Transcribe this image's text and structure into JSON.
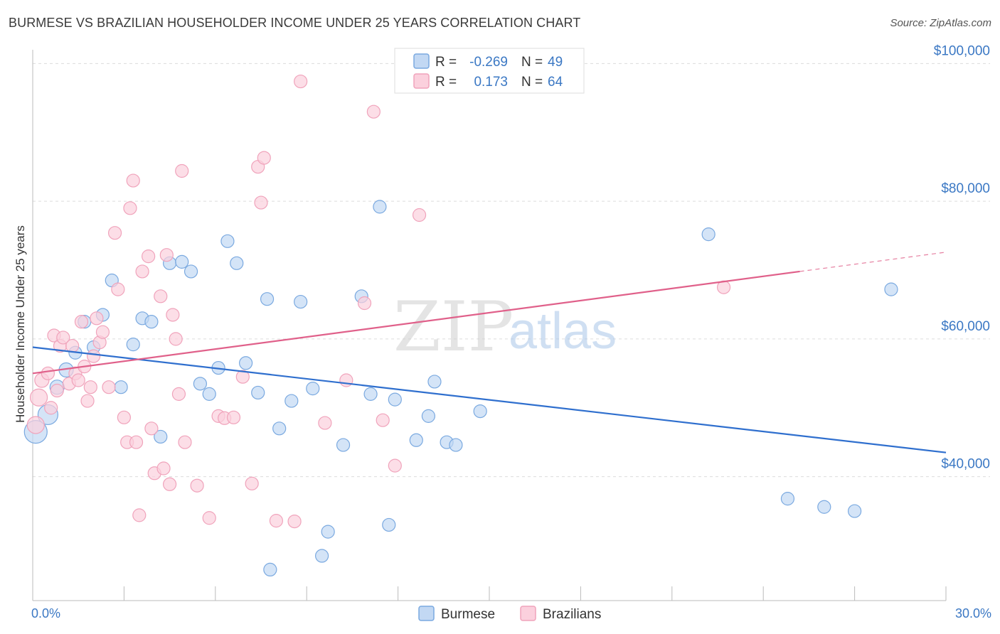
{
  "chart_data": {
    "type": "scatter",
    "title": "BURMESE VS BRAZILIAN HOUSEHOLDER INCOME UNDER 25 YEARS CORRELATION CHART",
    "source": "Source: ZipAtlas.com",
    "xlabel": "",
    "ylabel": "Householder Income Under 25 years",
    "xlim": [
      0,
      30
    ],
    "ylim": [
      22000,
      102000
    ],
    "x_tick_labels": [
      "0.0%",
      "30.0%"
    ],
    "y_ticks": [
      {
        "value": 100000,
        "label": "$100,000"
      },
      {
        "value": 80000,
        "label": "$80,000"
      },
      {
        "value": 60000,
        "label": "$60,000"
      },
      {
        "value": 40000,
        "label": "$40,000"
      }
    ],
    "watermark": {
      "zip": "ZIP",
      "atlas": "atlas"
    },
    "legend": {
      "r_label": "R =",
      "n_label": "N =",
      "rows": [
        {
          "r": "-0.269",
          "n": "49"
        },
        {
          "r": "0.173",
          "n": "64"
        }
      ]
    },
    "series": [
      {
        "name": "Burmese",
        "color": "#7aa9e0",
        "fill": "#c2d8f3",
        "line_color": "#2f6fce",
        "trend": {
          "x0": 0,
          "y0": 58800,
          "x1": 30,
          "y1": 43500
        },
        "points": [
          [
            0.1,
            46500,
            16
          ],
          [
            0.5,
            49000,
            14
          ],
          [
            0.8,
            53000,
            10
          ],
          [
            1.1,
            55500,
            10
          ],
          [
            1.4,
            58000,
            9
          ],
          [
            1.7,
            62500,
            9
          ],
          [
            2.0,
            58800,
            9
          ],
          [
            2.3,
            63500,
            9
          ],
          [
            2.6,
            68500,
            9
          ],
          [
            2.9,
            53000,
            9
          ],
          [
            3.3,
            59200,
            9
          ],
          [
            3.6,
            63000,
            9
          ],
          [
            3.9,
            62500,
            9
          ],
          [
            4.2,
            45800,
            9
          ],
          [
            4.5,
            71000,
            9
          ],
          [
            4.9,
            71200,
            9
          ],
          [
            5.2,
            69800,
            9
          ],
          [
            5.5,
            53500,
            9
          ],
          [
            5.8,
            52000,
            9
          ],
          [
            6.1,
            55800,
            9
          ],
          [
            6.4,
            74200,
            9
          ],
          [
            6.7,
            71000,
            9
          ],
          [
            7.0,
            56500,
            9
          ],
          [
            7.4,
            52200,
            9
          ],
          [
            7.7,
            65800,
            9
          ],
          [
            8.1,
            47000,
            9
          ],
          [
            8.5,
            51000,
            9
          ],
          [
            8.8,
            65400,
            9
          ],
          [
            9.2,
            52800,
            9
          ],
          [
            9.5,
            28500,
            9
          ],
          [
            9.7,
            32000,
            9
          ],
          [
            10.2,
            44600,
            9
          ],
          [
            10.8,
            66200,
            9
          ],
          [
            11.1,
            52000,
            9
          ],
          [
            11.4,
            79200,
            9
          ],
          [
            11.7,
            33000,
            9
          ],
          [
            11.9,
            51200,
            9
          ],
          [
            12.6,
            45300,
            9
          ],
          [
            13.0,
            48800,
            9
          ],
          [
            13.2,
            53800,
            9
          ],
          [
            13.6,
            45000,
            9
          ],
          [
            13.9,
            44600,
            9
          ],
          [
            14.7,
            49500,
            9
          ],
          [
            7.8,
            26500,
            9
          ],
          [
            22.2,
            75200,
            9
          ],
          [
            24.8,
            36800,
            9
          ],
          [
            26.0,
            35600,
            9
          ],
          [
            27.0,
            35000,
            9
          ],
          [
            28.2,
            67200,
            9
          ]
        ]
      },
      {
        "name": "Brazilians",
        "color": "#f0a3bb",
        "fill": "#fbd0dd",
        "line_color": "#e0608a",
        "trend": {
          "x0": 0,
          "y0": 55000,
          "x1": 25.2,
          "y1": 69800
        },
        "trend_dash": {
          "x0": 25.2,
          "y0": 69800,
          "x1": 30,
          "y1": 72600
        },
        "points": [
          [
            0.1,
            47500,
            12
          ],
          [
            0.2,
            51500,
            12
          ],
          [
            0.3,
            54000,
            10
          ],
          [
            0.5,
            55000,
            9
          ],
          [
            0.6,
            50000,
            9
          ],
          [
            0.7,
            60500,
            9
          ],
          [
            0.9,
            59000,
            9
          ],
          [
            1.0,
            60200,
            9
          ],
          [
            1.2,
            53500,
            9
          ],
          [
            1.3,
            59000,
            9
          ],
          [
            1.4,
            55000,
            9
          ],
          [
            1.5,
            54000,
            9
          ],
          [
            1.6,
            62500,
            9
          ],
          [
            1.7,
            56000,
            9
          ],
          [
            1.8,
            51000,
            9
          ],
          [
            1.9,
            53000,
            9
          ],
          [
            2.0,
            57500,
            9
          ],
          [
            2.2,
            59500,
            9
          ],
          [
            2.3,
            61000,
            9
          ],
          [
            2.5,
            53000,
            9
          ],
          [
            2.7,
            75400,
            9
          ],
          [
            2.8,
            67200,
            9
          ],
          [
            3.0,
            48600,
            9
          ],
          [
            3.1,
            45000,
            9
          ],
          [
            3.2,
            79000,
            9
          ],
          [
            3.3,
            83000,
            9
          ],
          [
            3.5,
            34400,
            9
          ],
          [
            3.6,
            69800,
            9
          ],
          [
            3.8,
            72000,
            9
          ],
          [
            3.9,
            47000,
            9
          ],
          [
            4.0,
            40500,
            9
          ],
          [
            4.2,
            66200,
            9
          ],
          [
            4.3,
            41200,
            9
          ],
          [
            4.4,
            72200,
            9
          ],
          [
            4.5,
            38900,
            9
          ],
          [
            4.6,
            63500,
            9
          ],
          [
            4.7,
            60000,
            9
          ],
          [
            4.8,
            52000,
            9
          ],
          [
            4.9,
            84400,
            9
          ],
          [
            5.0,
            45000,
            9
          ],
          [
            5.4,
            38700,
            9
          ],
          [
            5.8,
            34000,
            9
          ],
          [
            6.1,
            48800,
            9
          ],
          [
            6.3,
            48500,
            9
          ],
          [
            6.6,
            48600,
            9
          ],
          [
            6.9,
            54500,
            9
          ],
          [
            7.2,
            39000,
            9
          ],
          [
            7.4,
            85000,
            9
          ],
          [
            7.5,
            79800,
            9
          ],
          [
            7.6,
            86300,
            9
          ],
          [
            8.0,
            33600,
            9
          ],
          [
            8.6,
            33500,
            9
          ],
          [
            8.8,
            97400,
            9
          ],
          [
            9.6,
            47800,
            9
          ],
          [
            10.3,
            54000,
            9
          ],
          [
            10.9,
            65200,
            9
          ],
          [
            11.2,
            93000,
            9
          ],
          [
            11.5,
            48200,
            9
          ],
          [
            11.9,
            41600,
            9
          ],
          [
            12.7,
            78000,
            9
          ],
          [
            22.7,
            67500,
            9
          ],
          [
            3.4,
            45000,
            9
          ],
          [
            2.1,
            63000,
            9
          ],
          [
            0.8,
            52500,
            9
          ]
        ]
      }
    ]
  }
}
